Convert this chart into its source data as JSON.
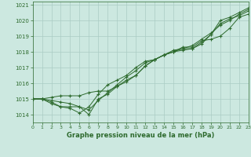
{
  "title": "Graphe pression niveau de la mer (hPa)",
  "bg_color": "#cce8e0",
  "grid_color": "#aaccc4",
  "line_color": "#2d6a2d",
  "x_min": 0,
  "x_max": 23,
  "y_min": 1013.5,
  "y_max": 1021.2,
  "series": [
    [
      1015.0,
      1015.0,
      1014.7,
      1014.5,
      1014.5,
      1014.5,
      1014.0,
      1015.0,
      1015.3,
      1015.8,
      1016.2,
      1016.5,
      1017.1,
      1017.5,
      1017.8,
      1018.0,
      1018.1,
      1018.2,
      1018.6,
      1019.1,
      1020.0,
      1020.2,
      1020.5,
      1020.8
    ],
    [
      1015.0,
      1015.0,
      1015.1,
      1015.2,
      1015.2,
      1015.2,
      1015.4,
      1015.5,
      1015.5,
      1015.8,
      1016.1,
      1016.5,
      1017.1,
      1017.5,
      1017.8,
      1018.1,
      1018.2,
      1018.2,
      1018.5,
      1019.1,
      1019.8,
      1020.1,
      1020.3,
      1020.6
    ],
    [
      1015.0,
      1015.0,
      1014.8,
      1014.5,
      1014.4,
      1014.1,
      1014.5,
      1015.3,
      1015.9,
      1016.2,
      1016.5,
      1017.0,
      1017.4,
      1017.5,
      1017.8,
      1018.0,
      1018.3,
      1018.3,
      1018.7,
      1018.8,
      1019.0,
      1019.5,
      1020.2,
      1020.4
    ],
    [
      1015.0,
      1015.0,
      1014.9,
      1014.8,
      1014.7,
      1014.5,
      1014.3,
      1014.9,
      1015.4,
      1015.9,
      1016.4,
      1016.8,
      1017.3,
      1017.5,
      1017.8,
      1018.0,
      1018.2,
      1018.4,
      1018.8,
      1019.2,
      1019.7,
      1020.0,
      1020.4,
      1020.7
    ]
  ],
  "yticks": [
    1014,
    1015,
    1016,
    1017,
    1018,
    1019,
    1020,
    1021
  ],
  "xtick_labels": [
    "0",
    "1",
    "2",
    "3",
    "4",
    "5",
    "6",
    "7",
    "8",
    "9",
    "10",
    "11",
    "12",
    "13",
    "14",
    "15",
    "16",
    "17",
    "18",
    "19",
    "20",
    "21",
    "22",
    "23"
  ],
  "xlabel_fontsize": 6.0,
  "tick_fontsize": 4.5,
  "ytick_fontsize": 5.0
}
